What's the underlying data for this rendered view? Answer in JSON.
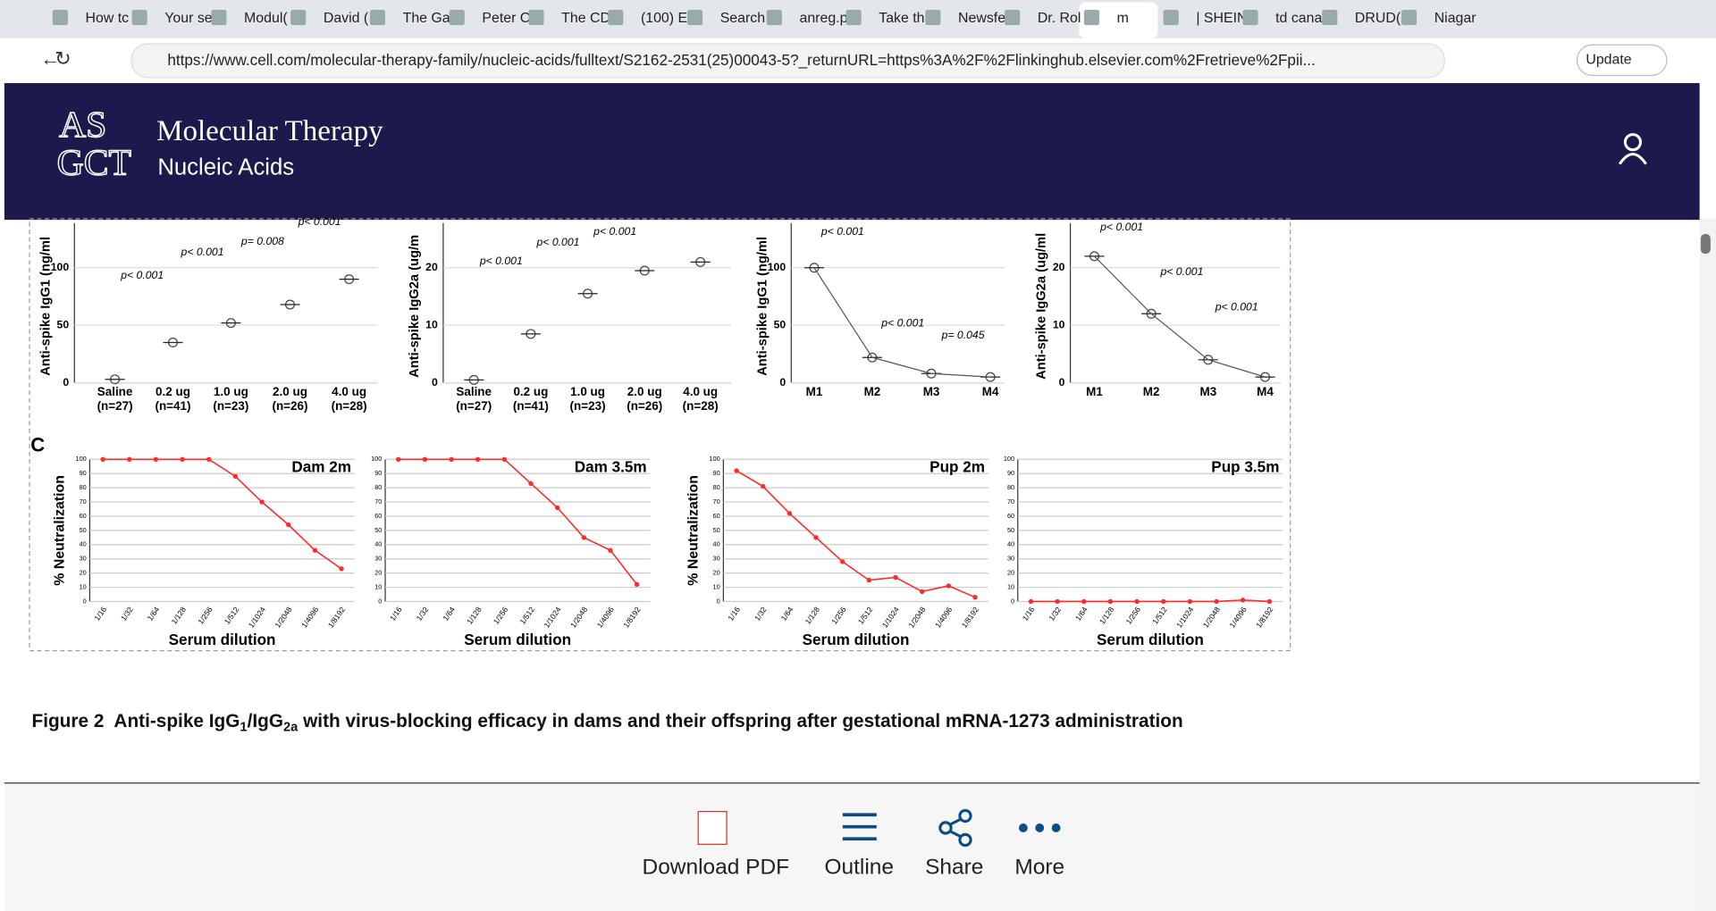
{
  "browser": {
    "tabs": [
      "How tc",
      "Your se",
      "Modul(",
      "David (",
      "The Ga",
      "Peter C",
      "The CD",
      "(100) E",
      "Search",
      "anreg.p",
      "Take th",
      "Newsfe",
      "Dr. Rol",
      "m",
      "| SHEIN",
      "td cana",
      "DRUD(",
      "Niagar"
    ],
    "url": "https://www.cell.com/molecular-therapy-family/nucleic-acids/fulltext/S2162-2531(25)00043-5?_returnURL=https%3A%2F%2Flinkinghub.elsevier.com%2Fretrieve%2Fpii...",
    "update": "Update"
  },
  "header": {
    "logo_lines": [
      "AS",
      "GCT"
    ],
    "title": "Molecular Therapy",
    "subtitle": "Nucleic Acids"
  },
  "figure": {
    "dot_panels": [
      {
        "ylabel": "Anti-spike IgG1 (ng/ml",
        "ylim": [
          0,
          135
        ],
        "yticks": [
          0,
          50,
          100
        ],
        "categories": [
          [
            "Saline",
            "(n=27)"
          ],
          [
            "0.2 ug",
            "(n=41)"
          ],
          [
            "1.0 ug",
            "(n=23)"
          ],
          [
            "2.0 ug",
            "(n=26)"
          ],
          [
            "4.0 ug",
            "(n=28)"
          ]
        ],
        "means": [
          3,
          35,
          52,
          68,
          90
        ],
        "pvalues": [
          "p< 0.001",
          "p< 0.001",
          "p= 0.008",
          "p< 0.001"
        ]
      },
      {
        "ylabel": "Anti-spike IgG2a (ug/m",
        "ylim": [
          0,
          27
        ],
        "yticks": [
          0,
          10,
          20
        ],
        "categories": [
          [
            "Saline",
            "(n=27)"
          ],
          [
            "0.2 ug",
            "(n=41)"
          ],
          [
            "1.0 ug",
            "(n=23)"
          ],
          [
            "2.0 ug",
            "(n=26)"
          ],
          [
            "4.0 ug",
            "(n=28)"
          ]
        ],
        "means": [
          0.5,
          8.5,
          15.5,
          19.5,
          21
        ],
        "pvalues": [
          "p< 0.001",
          "p< 0.001",
          "p< 0.001"
        ]
      },
      {
        "ylabel": "Anti-spike IgG1 (ng/ml",
        "ylim": [
          0,
          135
        ],
        "yticks": [
          0,
          50,
          100
        ],
        "categories": [
          [
            "M1"
          ],
          [
            "M2"
          ],
          [
            "M3"
          ],
          [
            "M4"
          ]
        ],
        "means": [
          100,
          22,
          8,
          5
        ],
        "pvalues": [
          "p< 0.001",
          "p< 0.001",
          "p= 0.045"
        ]
      },
      {
        "ylabel": "Anti-spike IgG2a (ug/ml",
        "ylim": [
          0,
          27
        ],
        "yticks": [
          0,
          10,
          20
        ],
        "categories": [
          [
            "M1"
          ],
          [
            "M2"
          ],
          [
            "M3"
          ],
          [
            "M4"
          ]
        ],
        "means": [
          22,
          12,
          4,
          1
        ],
        "pvalues": [
          "p< 0.001",
          "p< 0.001",
          "p< 0.001"
        ]
      }
    ],
    "panel_label": "C",
    "neutralization": {
      "ylabel": "% Neutralization",
      "xlabel": "Serum dilution",
      "ylim": [
        0,
        100
      ],
      "yticks": [
        0,
        10,
        20,
        30,
        40,
        50,
        60,
        70,
        80,
        90,
        100
      ],
      "categories": [
        "1/16",
        "1/32",
        "1/64",
        "1/128",
        "1/256",
        "1/512",
        "1/1024",
        "1/2048",
        "1/4096",
        "1/8192"
      ],
      "color": "#ff2a2a",
      "panels": [
        {
          "title": "Dam 2m",
          "values": [
            100,
            100,
            100,
            100,
            100,
            88,
            70,
            54,
            36,
            23
          ]
        },
        {
          "title": "Dam 3.5m",
          "values": [
            100,
            100,
            100,
            100,
            100,
            83,
            66,
            45,
            36,
            12
          ]
        },
        {
          "title": "Pup 2m",
          "values": [
            92,
            81,
            62,
            45,
            28,
            15,
            17,
            7,
            11,
            3
          ]
        },
        {
          "title": "Pup 3.5m",
          "values": [
            0,
            0,
            0,
            0,
            0,
            0,
            0,
            0,
            1,
            0
          ]
        }
      ]
    }
  },
  "caption": {
    "label": "Figure 2",
    "parts": [
      "Anti-spike IgG",
      "1",
      "/IgG",
      "2a",
      " with virus-blocking efficacy in dams and their offspring after gestational mRNA-1273 administration"
    ]
  },
  "toolbar": [
    "Download PDF",
    "Outline",
    "Share",
    "More"
  ]
}
